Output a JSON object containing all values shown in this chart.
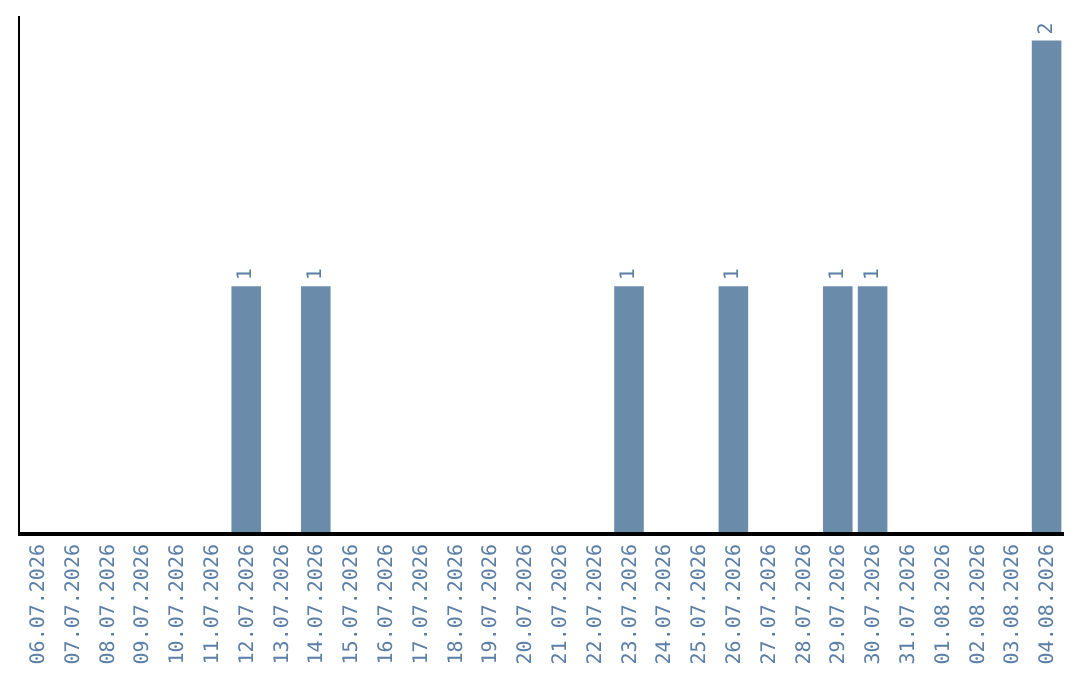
{
  "chart_data": {
    "type": "bar",
    "categories": [
      "06.07.2026",
      "07.07.2026",
      "08.07.2026",
      "09.07.2026",
      "10.07.2026",
      "11.07.2026",
      "12.07.2026",
      "13.07.2026",
      "14.07.2026",
      "15.07.2026",
      "16.07.2026",
      "17.07.2026",
      "18.07.2026",
      "19.07.2026",
      "20.07.2026",
      "21.07.2026",
      "22.07.2026",
      "23.07.2026",
      "24.07.2026",
      "25.07.2026",
      "26.07.2026",
      "27.07.2026",
      "28.07.2026",
      "29.07.2026",
      "30.07.2026",
      "31.07.2026",
      "01.08.2026",
      "02.08.2026",
      "03.08.2026",
      "04.08.2026"
    ],
    "values": [
      0,
      0,
      0,
      0,
      0,
      0,
      1,
      0,
      1,
      0,
      0,
      0,
      0,
      0,
      0,
      0,
      0,
      1,
      0,
      0,
      1,
      0,
      0,
      1,
      1,
      0,
      0,
      0,
      0,
      2
    ],
    "value_labels": [
      null,
      null,
      null,
      null,
      null,
      null,
      "1",
      null,
      "1",
      null,
      null,
      null,
      null,
      null,
      null,
      null,
      null,
      "1",
      null,
      null,
      "1",
      null,
      null,
      "1",
      "1",
      null,
      null,
      null,
      null,
      "2"
    ],
    "color": "#6a8caa",
    "tick_labels": "x"
  }
}
